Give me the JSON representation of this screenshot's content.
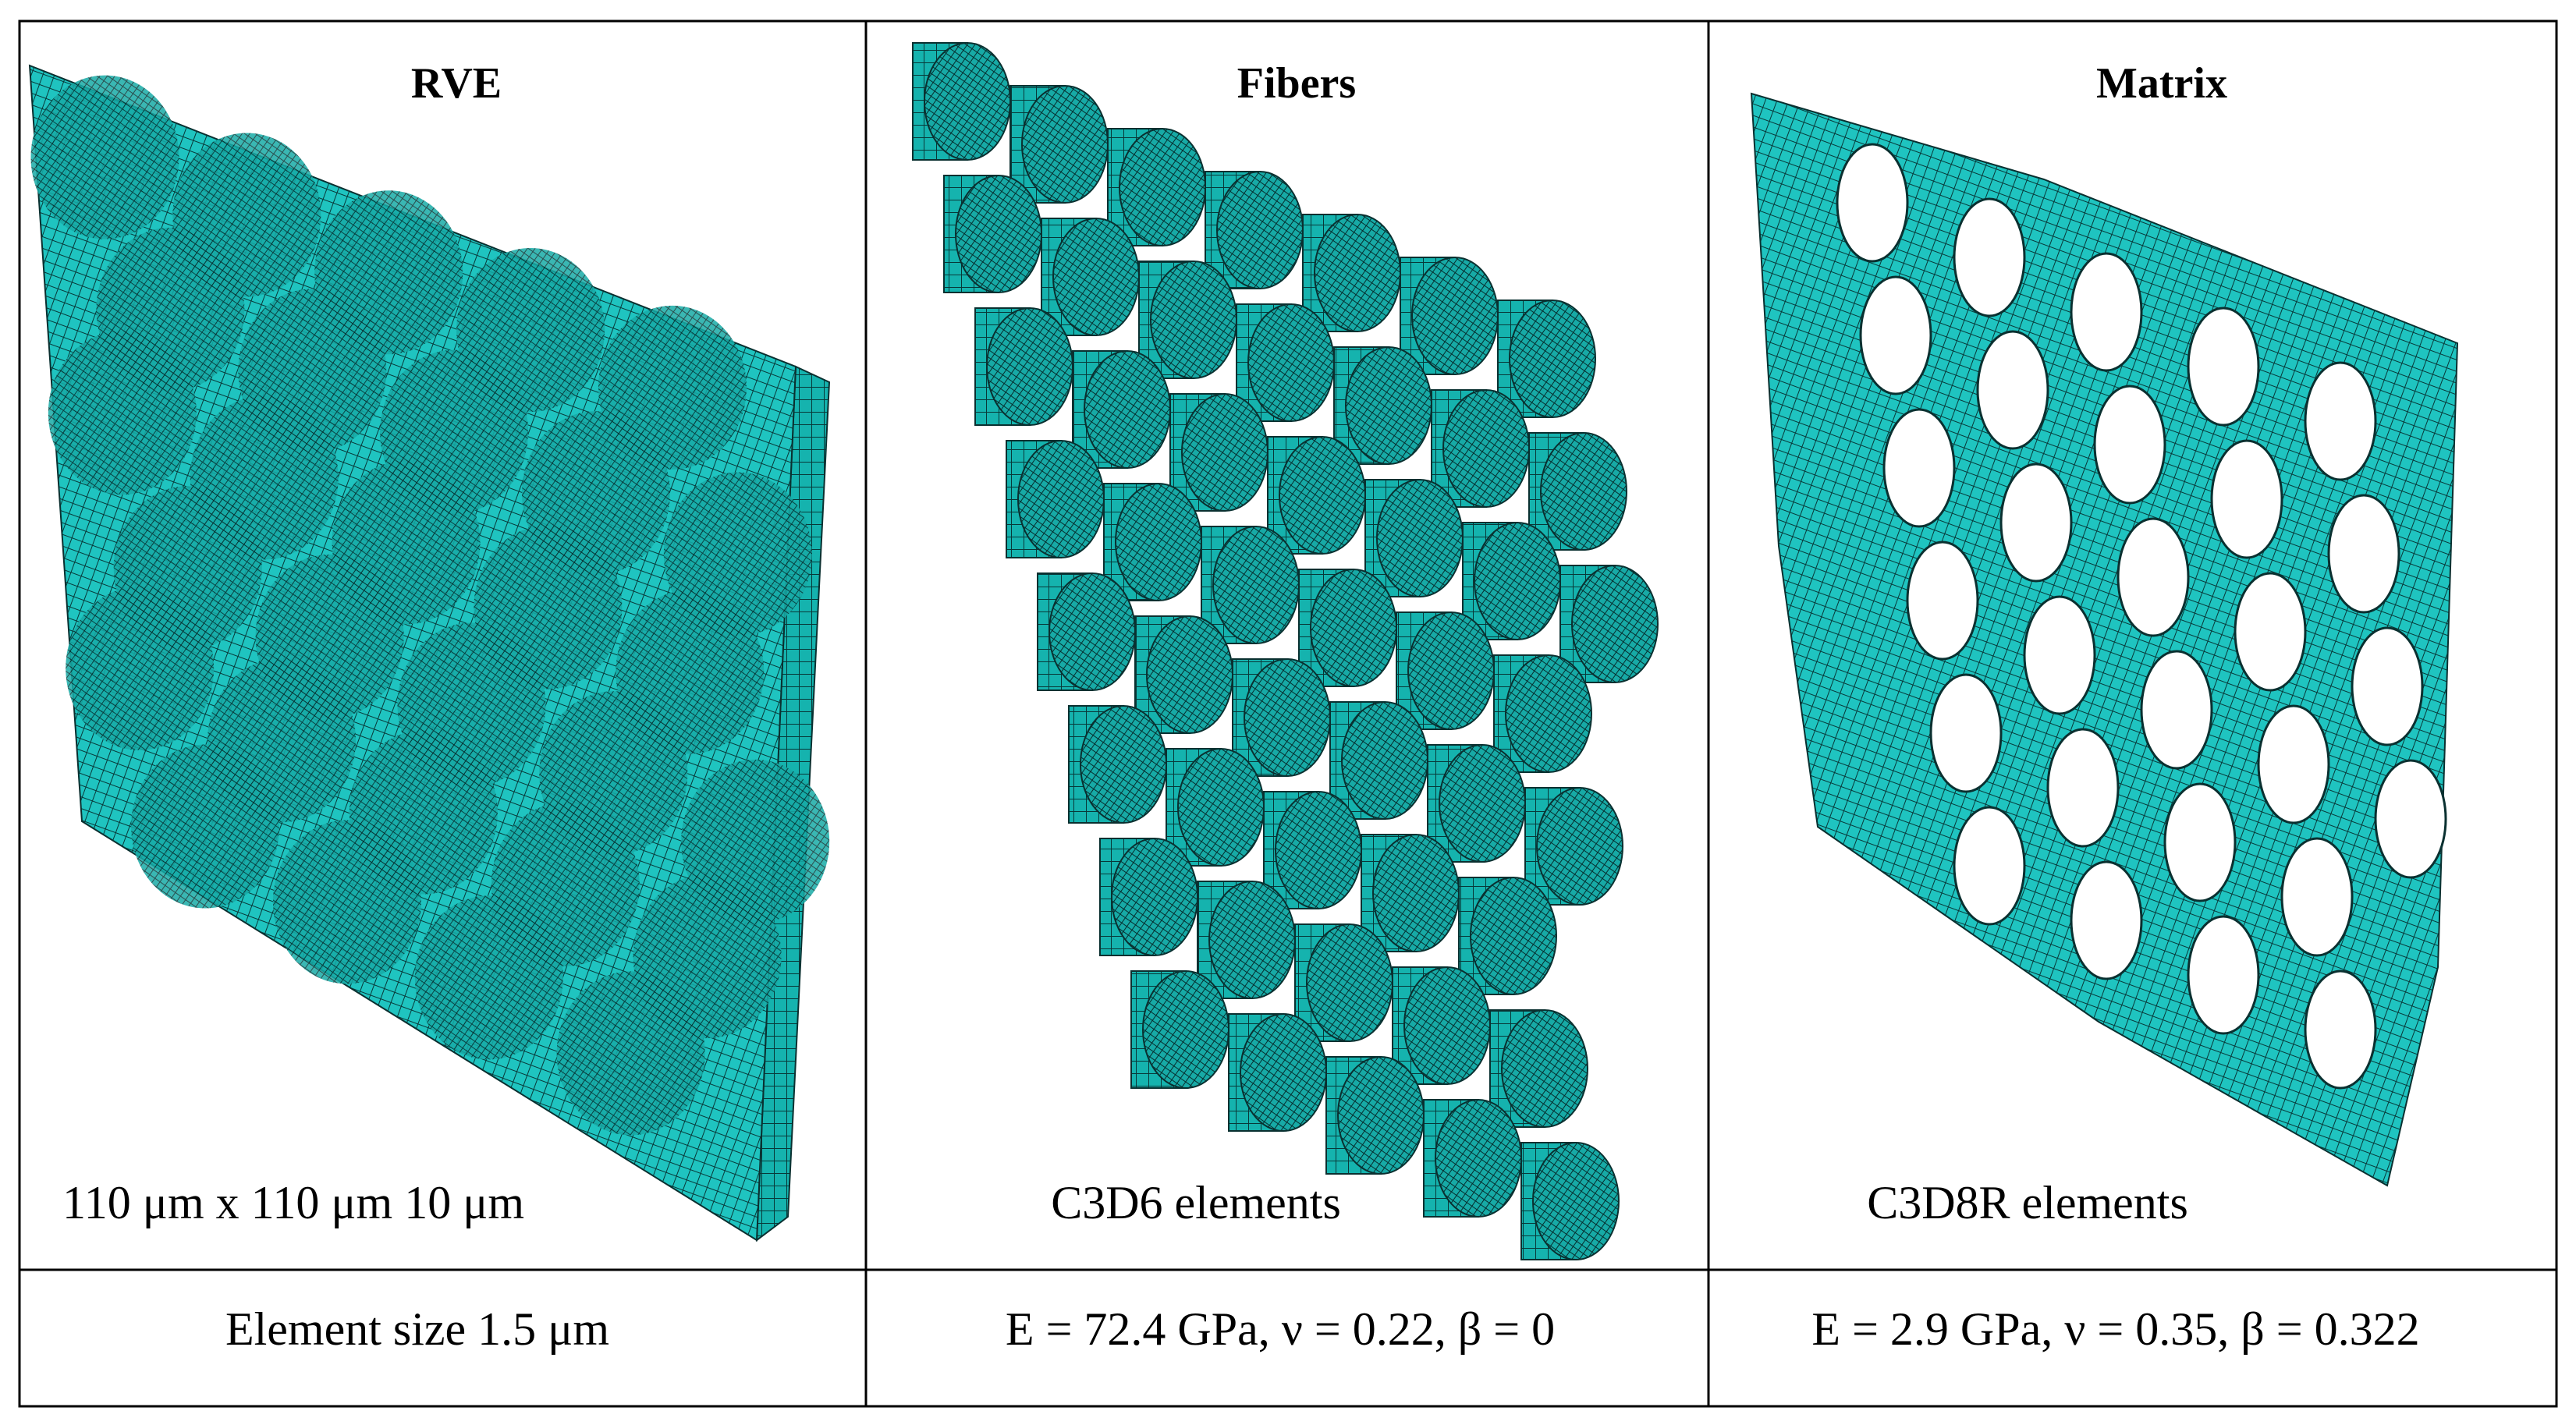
{
  "table": {
    "header": [
      "RVE",
      "Fibers",
      "Matrix"
    ],
    "captions": [
      "110 μm x 110 μm 10 μm",
      "C3D6 elements",
      "C3D8R elements"
    ],
    "footer": [
      "Element size 1.5 μm",
      "E = 72.4 GPa, ν = 0.22, β = 0",
      "E = 2.9 GPa, ν = 0.35, β = 0.322"
    ]
  }
}
